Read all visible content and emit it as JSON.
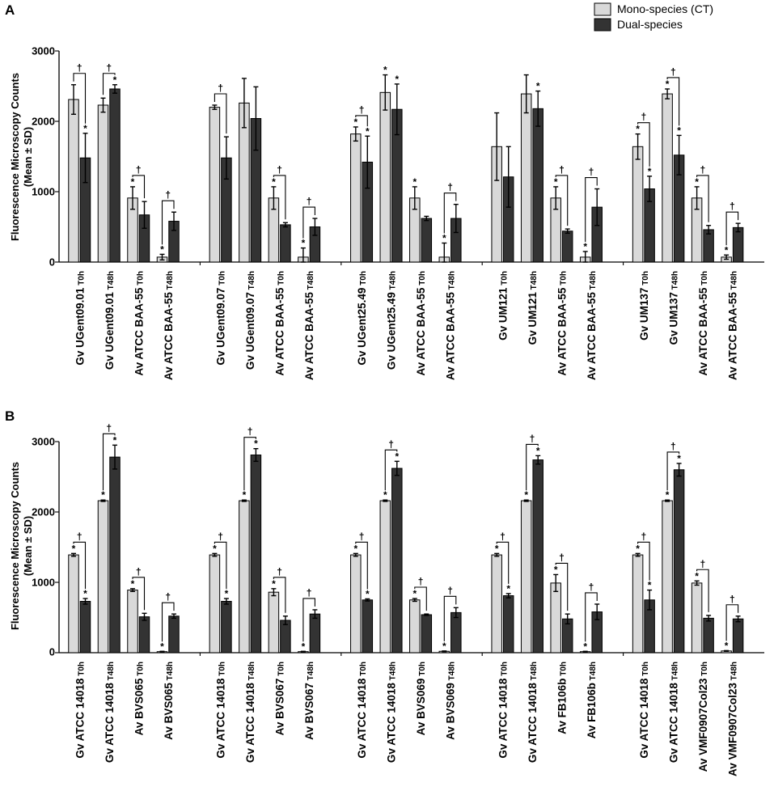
{
  "chart_data": [
    {
      "type": "bar",
      "panel_label": "A",
      "ylabel_line1": "Fluorescence Microscopy Counts",
      "ylabel_line2": "(Mean ± SD)",
      "ylim": [
        0,
        3000
      ],
      "yticks": [
        "0",
        "1000",
        "2000",
        "3000"
      ],
      "legend": [
        {
          "name": "Mono-species (CT)",
          "color": "#d9d9d9"
        },
        {
          "name": "Dual-species",
          "color": "#333333"
        }
      ],
      "groups": [
        {
          "categories": [
            {
              "name": "Gv UGent09.01",
              "time": "T0h",
              "mono": 2310,
              "mono_sd": 210,
              "dual": 1480,
              "dual_sd": 350,
              "mono_star": false,
              "dual_star": true,
              "dagger": true
            },
            {
              "name": "Gv UGent09.01",
              "time": "T48h",
              "mono": 2230,
              "mono_sd": 100,
              "dual": 2460,
              "dual_sd": 60,
              "mono_star": false,
              "dual_star": true,
              "dagger": true
            },
            {
              "name": "Av ATCC BAA-55",
              "time": "T0h",
              "mono": 910,
              "mono_sd": 160,
              "dual": 670,
              "dual_sd": 190,
              "mono_star": true,
              "dual_star": false,
              "dagger": true
            },
            {
              "name": "Av ATCC BAA-55",
              "time": "T48h",
              "mono": 70,
              "mono_sd": 40,
              "dual": 580,
              "dual_sd": 130,
              "mono_star": true,
              "dual_star": false,
              "dagger": true
            }
          ]
        },
        {
          "categories": [
            {
              "name": "Gv UGent09.07",
              "time": "T0h",
              "mono": 2200,
              "mono_sd": 30,
              "dual": 1480,
              "dual_sd": 300,
              "mono_star": false,
              "dual_star": false,
              "dagger": true
            },
            {
              "name": "Gv UGent09.07",
              "time": "T48h",
              "mono": 2260,
              "mono_sd": 350,
              "dual": 2040,
              "dual_sd": 450,
              "mono_star": false,
              "dual_star": false,
              "dagger": false
            },
            {
              "name": "Av ATCC BAA-55",
              "time": "T0h",
              "mono": 910,
              "mono_sd": 160,
              "dual": 530,
              "dual_sd": 30,
              "mono_star": true,
              "dual_star": false,
              "dagger": true
            },
            {
              "name": "Av ATCC BAA-55",
              "time": "T48h",
              "mono": 70,
              "mono_sd": 130,
              "dual": 500,
              "dual_sd": 120,
              "mono_star": true,
              "dual_star": false,
              "dagger": true
            }
          ]
        },
        {
          "categories": [
            {
              "name": "Gv UGent25.49",
              "time": "T0h",
              "mono": 1820,
              "mono_sd": 100,
              "dual": 1420,
              "dual_sd": 370,
              "mono_star": true,
              "dual_star": true,
              "dagger": true
            },
            {
              "name": "Gv UGent25.49",
              "time": "T48h",
              "mono": 2410,
              "mono_sd": 250,
              "dual": 2170,
              "dual_sd": 360,
              "mono_star": true,
              "dual_star": true,
              "dagger": false
            },
            {
              "name": "Av ATCC BAA-55",
              "time": "T0h",
              "mono": 910,
              "mono_sd": 160,
              "dual": 620,
              "dual_sd": 30,
              "mono_star": true,
              "dual_star": false,
              "dagger": false
            },
            {
              "name": "Av ATCC BAA-55",
              "time": "T48h",
              "mono": 70,
              "mono_sd": 200,
              "dual": 620,
              "dual_sd": 200,
              "mono_star": true,
              "dual_star": false,
              "dagger": true
            }
          ]
        },
        {
          "categories": [
            {
              "name": "Gv UM121",
              "time": "T0h",
              "mono": 1640,
              "mono_sd": 480,
              "dual": 1210,
              "dual_sd": 430,
              "mono_star": false,
              "dual_star": false,
              "dagger": false
            },
            {
              "name": "Gv UM121",
              "time": "T48h",
              "mono": 2390,
              "mono_sd": 270,
              "dual": 2180,
              "dual_sd": 250,
              "mono_star": false,
              "dual_star": true,
              "dagger": false
            },
            {
              "name": "Av ATCC BAA-55",
              "time": "T0h",
              "mono": 910,
              "mono_sd": 160,
              "dual": 440,
              "dual_sd": 30,
              "mono_star": true,
              "dual_star": false,
              "dagger": true
            },
            {
              "name": "Av ATCC BAA-55",
              "time": "T48h",
              "mono": 70,
              "mono_sd": 80,
              "dual": 780,
              "dual_sd": 260,
              "mono_star": true,
              "dual_star": false,
              "dagger": true
            }
          ]
        },
        {
          "categories": [
            {
              "name": "Gv UM137",
              "time": "T0h",
              "mono": 1640,
              "mono_sd": 180,
              "dual": 1040,
              "dual_sd": 180,
              "mono_star": true,
              "dual_star": true,
              "dagger": true
            },
            {
              "name": "Gv UM137",
              "time": "T48h",
              "mono": 2390,
              "mono_sd": 70,
              "dual": 1520,
              "dual_sd": 280,
              "mono_star": true,
              "dual_star": true,
              "dagger": true
            },
            {
              "name": "Av ATCC BAA-55",
              "time": "T0h",
              "mono": 910,
              "mono_sd": 160,
              "dual": 460,
              "dual_sd": 60,
              "mono_star": true,
              "dual_star": false,
              "dagger": true
            },
            {
              "name": "Av ATCC BAA-55",
              "time": "T48h",
              "mono": 70,
              "mono_sd": 30,
              "dual": 490,
              "dual_sd": 60,
              "mono_star": true,
              "dual_star": false,
              "dagger": true
            }
          ]
        }
      ]
    },
    {
      "type": "bar",
      "panel_label": "B",
      "ylabel_line1": "Fluorescence Microscopy Counts",
      "ylabel_line2": "(Mean ± SD)",
      "ylim": [
        0,
        3000
      ],
      "yticks": [
        "0",
        "1000",
        "2000",
        "3000"
      ],
      "groups": [
        {
          "categories": [
            {
              "name": "Gv ATCC 14018",
              "time": "T0h",
              "mono": 1390,
              "mono_sd": 20,
              "dual": 730,
              "dual_sd": 40,
              "mono_star": true,
              "dual_star": true,
              "dagger": true
            },
            {
              "name": "Gv ATCC 14018",
              "time": "T48h",
              "mono": 2160,
              "mono_sd": 10,
              "dual": 2780,
              "dual_sd": 170,
              "mono_star": true,
              "dual_star": true,
              "dagger": true
            },
            {
              "name": "Av BVS065",
              "time": "T0h",
              "mono": 890,
              "mono_sd": 20,
              "dual": 510,
              "dual_sd": 50,
              "mono_star": true,
              "dual_star": false,
              "dagger": true
            },
            {
              "name": "Av BVS065",
              "time": "T48h",
              "mono": 15,
              "mono_sd": 5,
              "dual": 520,
              "dual_sd": 30,
              "mono_star": true,
              "dual_star": false,
              "dagger": true
            }
          ]
        },
        {
          "categories": [
            {
              "name": "Gv ATCC 14018",
              "time": "T0h",
              "mono": 1390,
              "mono_sd": 20,
              "dual": 730,
              "dual_sd": 40,
              "mono_star": true,
              "dual_star": true,
              "dagger": true
            },
            {
              "name": "Gv ATCC 14018",
              "time": "T48h",
              "mono": 2160,
              "mono_sd": 10,
              "dual": 2810,
              "dual_sd": 90,
              "mono_star": true,
              "dual_star": true,
              "dagger": true
            },
            {
              "name": "Av BVS067",
              "time": "T0h",
              "mono": 860,
              "mono_sd": 50,
              "dual": 460,
              "dual_sd": 60,
              "mono_star": true,
              "dual_star": false,
              "dagger": true
            },
            {
              "name": "Av BVS067",
              "time": "T48h",
              "mono": 15,
              "mono_sd": 5,
              "dual": 550,
              "dual_sd": 60,
              "mono_star": true,
              "dual_star": false,
              "dagger": true
            }
          ]
        },
        {
          "categories": [
            {
              "name": "Gv ATCC 14018",
              "time": "T0h",
              "mono": 1390,
              "mono_sd": 20,
              "dual": 750,
              "dual_sd": 15,
              "mono_star": true,
              "dual_star": true,
              "dagger": true
            },
            {
              "name": "Gv ATCC 14018",
              "time": "T48h",
              "mono": 2160,
              "mono_sd": 10,
              "dual": 2620,
              "dual_sd": 100,
              "mono_star": true,
              "dual_star": true,
              "dagger": true
            },
            {
              "name": "Av BVS069",
              "time": "T0h",
              "mono": 750,
              "mono_sd": 20,
              "dual": 540,
              "dual_sd": 10,
              "mono_star": true,
              "dual_star": false,
              "dagger": true
            },
            {
              "name": "Av BVS069",
              "time": "T48h",
              "mono": 20,
              "mono_sd": 5,
              "dual": 570,
              "dual_sd": 70,
              "mono_star": true,
              "dual_star": false,
              "dagger": true
            }
          ]
        },
        {
          "categories": [
            {
              "name": "Gv ATCC 14018",
              "time": "T0h",
              "mono": 1390,
              "mono_sd": 20,
              "dual": 810,
              "dual_sd": 30,
              "mono_star": true,
              "dual_star": true,
              "dagger": true
            },
            {
              "name": "Gv ATCC 14018",
              "time": "T48h",
              "mono": 2160,
              "mono_sd": 10,
              "dual": 2740,
              "dual_sd": 60,
              "mono_star": true,
              "dual_star": true,
              "dagger": true
            },
            {
              "name": "Av FB106b",
              "time": "T0h",
              "mono": 990,
              "mono_sd": 120,
              "dual": 480,
              "dual_sd": 70,
              "mono_star": true,
              "dual_star": false,
              "dagger": true
            },
            {
              "name": "Av FB106b",
              "time": "T48h",
              "mono": 15,
              "mono_sd": 5,
              "dual": 580,
              "dual_sd": 110,
              "mono_star": true,
              "dual_star": false,
              "dagger": true
            }
          ]
        },
        {
          "categories": [
            {
              "name": "Gv ATCC 14018",
              "time": "T0h",
              "mono": 1390,
              "mono_sd": 20,
              "dual": 750,
              "dual_sd": 140,
              "mono_star": true,
              "dual_star": true,
              "dagger": true
            },
            {
              "name": "Gv ATCC 14018",
              "time": "T48h",
              "mono": 2160,
              "mono_sd": 10,
              "dual": 2600,
              "dual_sd": 90,
              "mono_star": true,
              "dual_star": true,
              "dagger": true
            },
            {
              "name": "Av VMF0907Col23",
              "time": "T0h",
              "mono": 990,
              "mono_sd": 30,
              "dual": 490,
              "dual_sd": 40,
              "mono_star": true,
              "dual_star": false,
              "dagger": true
            },
            {
              "name": "Av VMF0907Col23",
              "time": "T48h",
              "mono": 25,
              "mono_sd": 5,
              "dual": 480,
              "dual_sd": 40,
              "mono_star": true,
              "dual_star": false,
              "dagger": true
            }
          ]
        }
      ]
    }
  ]
}
